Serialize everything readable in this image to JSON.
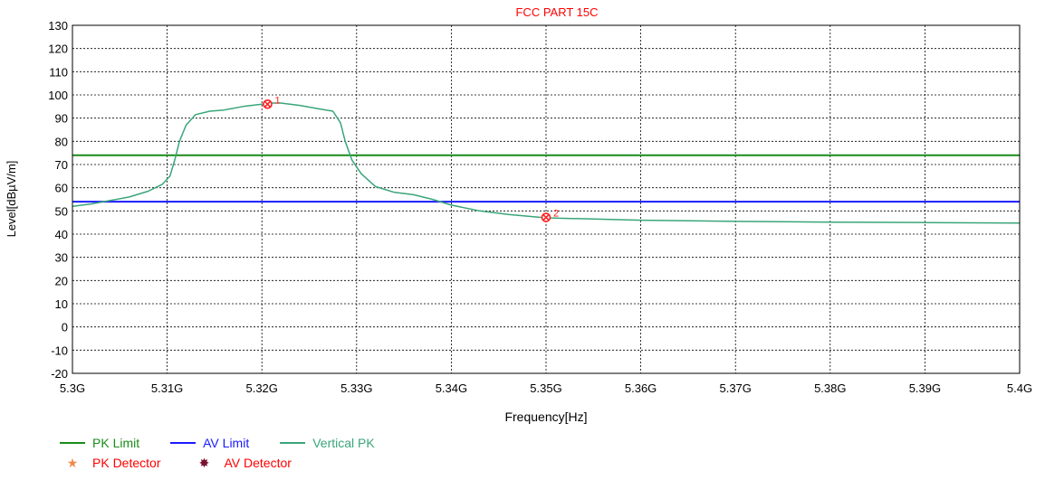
{
  "chart_data": {
    "type": "line",
    "title": "FCC  PART 15C",
    "xlabel": "Frequency[Hz]",
    "ylabel": "Level[dBµV/m]",
    "xlim": [
      5.3,
      5.4
    ],
    "ylim": [
      -20,
      130
    ],
    "xticks": [
      {
        "value": 5.3,
        "label": "5.3G"
      },
      {
        "value": 5.31,
        "label": "5.31G"
      },
      {
        "value": 5.32,
        "label": "5.32G"
      },
      {
        "value": 5.33,
        "label": "5.33G"
      },
      {
        "value": 5.34,
        "label": "5.34G"
      },
      {
        "value": 5.35,
        "label": "5.35G"
      },
      {
        "value": 5.36,
        "label": "5.36G"
      },
      {
        "value": 5.37,
        "label": "5.37G"
      },
      {
        "value": 5.38,
        "label": "5.38G"
      },
      {
        "value": 5.39,
        "label": "5.39G"
      },
      {
        "value": 5.4,
        "label": "5.4G"
      }
    ],
    "yticks": [
      130,
      120,
      110,
      100,
      90,
      80,
      70,
      60,
      50,
      40,
      30,
      20,
      10,
      0,
      -10,
      -20
    ],
    "grid": true,
    "series": [
      {
        "name": "PK Limit",
        "color": "#1a8c1a",
        "kind": "hline",
        "value": 74
      },
      {
        "name": "AV Limit",
        "color": "#1a1aff",
        "kind": "hline",
        "value": 54
      },
      {
        "name": "Vertical PK",
        "color": "#3aa57a",
        "kind": "line",
        "points": [
          [
            5.3,
            52
          ],
          [
            5.302,
            53
          ],
          [
            5.304,
            54.5
          ],
          [
            5.306,
            56
          ],
          [
            5.308,
            58.5
          ],
          [
            5.3095,
            61.5
          ],
          [
            5.3103,
            65
          ],
          [
            5.3108,
            72
          ],
          [
            5.3113,
            80
          ],
          [
            5.312,
            87
          ],
          [
            5.313,
            91.5
          ],
          [
            5.3145,
            93
          ],
          [
            5.316,
            93.5
          ],
          [
            5.318,
            95
          ],
          [
            5.32,
            96
          ],
          [
            5.3205,
            96.5
          ],
          [
            5.322,
            96.5
          ],
          [
            5.324,
            95.5
          ],
          [
            5.326,
            94
          ],
          [
            5.3275,
            93
          ],
          [
            5.3283,
            88
          ],
          [
            5.3288,
            80
          ],
          [
            5.3295,
            72
          ],
          [
            5.3305,
            66
          ],
          [
            5.332,
            60.5
          ],
          [
            5.334,
            58
          ],
          [
            5.336,
            57
          ],
          [
            5.338,
            55
          ],
          [
            5.34,
            52.5
          ],
          [
            5.343,
            50
          ],
          [
            5.346,
            48.5
          ],
          [
            5.35,
            47
          ],
          [
            5.355,
            46.5
          ],
          [
            5.36,
            46
          ],
          [
            5.37,
            45.5
          ],
          [
            5.38,
            45.2
          ],
          [
            5.39,
            45
          ],
          [
            5.4,
            44.8
          ]
        ]
      }
    ],
    "markers": [
      {
        "label": "1",
        "x": 5.3206,
        "y": 96
      },
      {
        "label": "2",
        "x": 5.35,
        "y": 47.2
      }
    ],
    "legend": {
      "placement": "bottom-left",
      "items": [
        {
          "name": "PK Limit",
          "kind": "line",
          "color": "#1a8c1a"
        },
        {
          "name": "AV Limit",
          "kind": "line",
          "color": "#1a1aff"
        },
        {
          "name": "Vertical PK",
          "kind": "line",
          "color": "#3aa57a"
        },
        {
          "name": "PK Detector",
          "kind": "symbol",
          "symbol": "★",
          "color": "#f08a4b"
        },
        {
          "name": "AV Detector",
          "kind": "symbol",
          "symbol": "✸",
          "color": "#7a1030"
        }
      ]
    }
  },
  "colors": {
    "title": "#ff0000",
    "marker": "#ff2020",
    "legend_text_row1": "#1a8c1a",
    "legend_text_row2": "#ff0000"
  }
}
